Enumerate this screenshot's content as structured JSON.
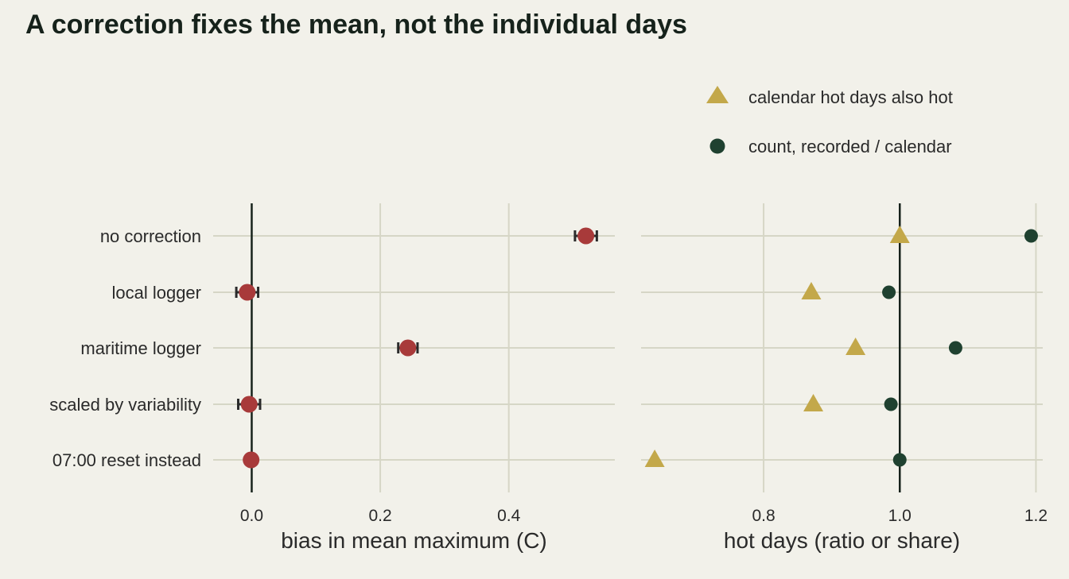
{
  "title": "A correction fixes the mean, not the individual days",
  "colors": {
    "bias_point": "#a83a3a",
    "errorbar": "#2b2b2b",
    "triangle": "#c3a84a",
    "circle": "#1f4130"
  },
  "legend": [
    {
      "label": "calendar hot days also hot",
      "shape": "triangle"
    },
    {
      "label": "count, recorded / calendar",
      "shape": "circle"
    }
  ],
  "chart_data": [
    {
      "type": "scatter",
      "panel": "left",
      "categories": [
        "no correction",
        "local logger",
        "maritime logger",
        "scaled by variability",
        "07:00 reset instead"
      ],
      "xlabel": "bias in mean maximum (C)",
      "xticks": [
        0.0,
        0.2,
        0.4
      ],
      "xtick_labels": [
        "0.0",
        "0.2",
        "0.4"
      ],
      "xlim": [
        -0.06,
        0.565
      ],
      "reference_x": 0,
      "series": [
        {
          "values": [
            0.52,
            -0.007,
            0.243,
            -0.004,
            -0.001
          ],
          "err_low": [
            0.503,
            -0.024,
            0.228,
            -0.021,
            -0.001
          ],
          "err_high": [
            0.537,
            0.01,
            0.258,
            0.013,
            -0.001
          ]
        }
      ]
    },
    {
      "type": "scatter",
      "panel": "right",
      "categories": [
        "no correction",
        "local logger",
        "maritime logger",
        "scaled by variability",
        "07:00 reset instead"
      ],
      "xlabel": "hot days (ratio or share)",
      "xticks": [
        0.8,
        1.0,
        1.2
      ],
      "xtick_labels": [
        "0.8",
        "1.0",
        "1.2"
      ],
      "xlim": [
        0.62,
        1.21
      ],
      "reference_x": 1.0,
      "series": [
        {
          "name": "calendar hot days also hot",
          "values": [
            1.0,
            0.87,
            0.935,
            0.873,
            0.64
          ]
        },
        {
          "name": "count, recorded / calendar",
          "values": [
            1.193,
            0.984,
            1.082,
            0.987,
            1.0
          ]
        }
      ]
    }
  ]
}
